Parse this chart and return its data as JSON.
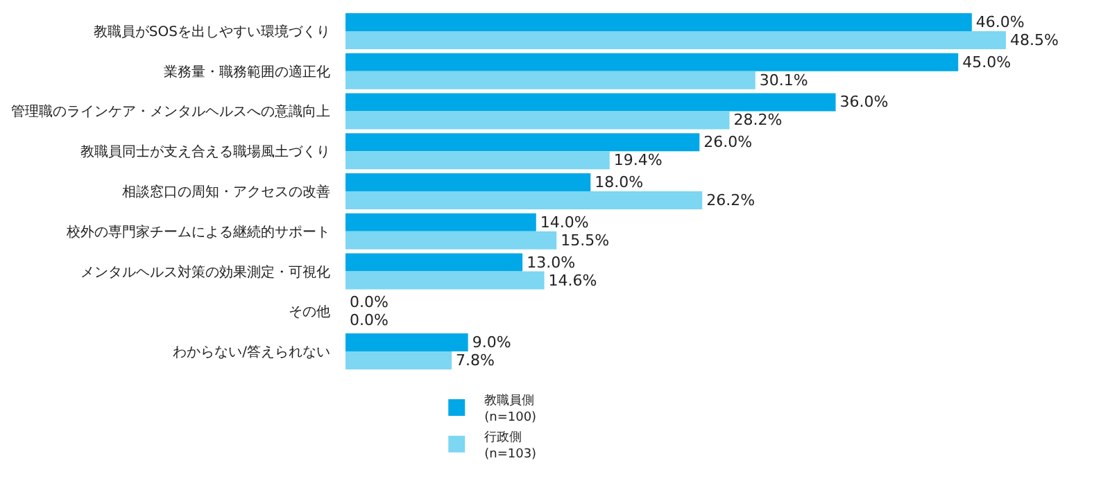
{
  "chart_data": {
    "type": "bar",
    "orientation": "horizontal",
    "categories": [
      "教職員がSOSを出しやすい環境づくり",
      "業務量・職務範囲の適正化",
      "管理職のラインケア・メンタルヘルスへの意識向上",
      "教職員同士が支え合える職場風土づくり",
      "相談窓口の周知・アクセスの改善",
      "校外の専門家チームによる継続的サポート",
      "メンタルヘルス対策の効果測定・可視化",
      "その他",
      "わからない/答えられない"
    ],
    "series": [
      {
        "name": "教職員側\n(n=100)",
        "color": "#00a8e8",
        "values": [
          46.0,
          45.0,
          36.0,
          26.0,
          18.0,
          14.0,
          13.0,
          0.0,
          9.0
        ],
        "value_labels": [
          "46.0%",
          "45.0%",
          "36.0%",
          "26.0%",
          "18.0%",
          "14.0%",
          "13.0%",
          "0.0%",
          "9.0%"
        ]
      },
      {
        "name": "行政側\n(n=103)",
        "color": "#7dd6f2",
        "values": [
          48.5,
          30.1,
          28.2,
          19.4,
          26.2,
          15.5,
          14.6,
          0.0,
          7.8
        ],
        "value_labels": [
          "48.5%",
          "30.1%",
          "28.2%",
          "19.4%",
          "26.2%",
          "15.5%",
          "14.6%",
          "0.0%",
          "7.8%"
        ]
      }
    ],
    "tick_labels": "y",
    "legend": "bottom"
  }
}
